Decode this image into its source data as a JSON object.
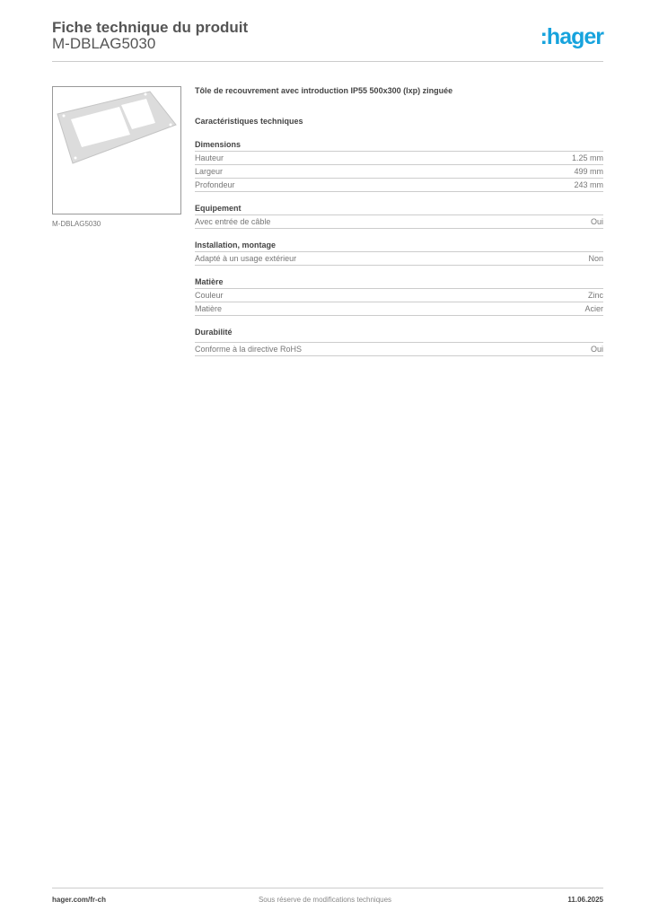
{
  "header": {
    "title": "Fiche technique du produit",
    "reference": "M-DBLAG5030",
    "logo": ":hager"
  },
  "product": {
    "image_caption": "M-DBLAG5030",
    "description": "Tôle de recouvrement avec introduction IP55 500x300 (lxp) zinguée",
    "characteristics_title": "Caractéristiques techniques"
  },
  "sections": [
    {
      "title": "Dimensions",
      "rows": [
        {
          "label": "Hauteur",
          "value": "1.25 mm"
        },
        {
          "label": "Largeur",
          "value": "499 mm"
        },
        {
          "label": "Profondeur",
          "value": "243 mm"
        }
      ]
    },
    {
      "title": "Equipement",
      "rows": [
        {
          "label": "Avec entrée de câble",
          "value": "Oui"
        }
      ]
    },
    {
      "title": "Installation, montage",
      "rows": [
        {
          "label": "Adapté à un usage extérieur",
          "value": "Non"
        }
      ]
    },
    {
      "title": "Matière",
      "rows": [
        {
          "label": "Couleur",
          "value": "Zinc"
        },
        {
          "label": "Matière",
          "value": "Acier"
        }
      ]
    },
    {
      "title": "Durabilité",
      "rows": [
        {
          "label": "Conforme à la directive RoHS",
          "value": "Oui"
        }
      ]
    }
  ],
  "footer": {
    "website": "hager.com/fr-ch",
    "disclaimer": "Sous réserve de modifications techniques",
    "date": "11.06.2025"
  },
  "colors": {
    "brand": "#17a3dd"
  }
}
